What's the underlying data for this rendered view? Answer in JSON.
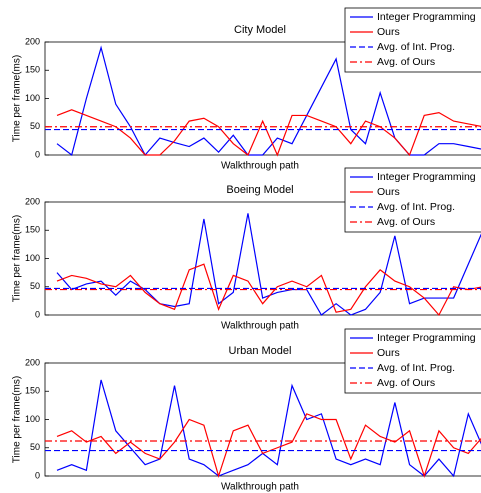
{
  "chart_data": [
    {
      "type": "line",
      "title": "City Model",
      "xlabel": "Walkthrough path",
      "ylabel": "Time per frame(ms)",
      "categories": [
        null,
        null,
        null,
        null,
        null,
        null,
        null,
        null,
        null,
        null,
        null,
        null,
        null,
        null,
        null,
        null,
        null,
        null,
        null,
        null,
        null,
        null,
        null,
        null,
        null,
        null,
        null,
        null,
        null,
        null
      ],
      "ylim": [
        0,
        200
      ],
      "yticks": [
        0,
        50,
        100,
        150,
        200
      ],
      "legend": "upper right",
      "series": [
        {
          "name": "Integer Programming",
          "color": "#0000ff",
          "style": "solid",
          "values": [
            20,
            0,
            100,
            190,
            90,
            50,
            0,
            30,
            22,
            15,
            30,
            5,
            35,
            0,
            0,
            30,
            20,
            70,
            120,
            170,
            45,
            20,
            110,
            30,
            0,
            0,
            20,
            20,
            15,
            10
          ]
        },
        {
          "name": "Ours",
          "color": "#ff0000",
          "style": "solid",
          "values": [
            70,
            80,
            70,
            60,
            50,
            30,
            0,
            0,
            25,
            60,
            65,
            50,
            20,
            0,
            60,
            0,
            70,
            70,
            60,
            50,
            20,
            60,
            50,
            30,
            0,
            70,
            75,
            60,
            55,
            50
          ]
        },
        {
          "name": "Avg. of Int. Prog.",
          "color": "#0000ff",
          "style": "dashed",
          "value": 45
        },
        {
          "name": "Avg. of Ours",
          "color": "#ff0000",
          "style": "dashdot",
          "value": 50
        }
      ]
    },
    {
      "type": "line",
      "title": "Boeing Model",
      "xlabel": "Walkthrough path",
      "ylabel": "Time per frame(ms)",
      "categories": [
        null,
        null,
        null,
        null,
        null,
        null,
        null,
        null,
        null,
        null,
        null,
        null,
        null,
        null,
        null,
        null,
        null,
        null,
        null,
        null,
        null,
        null,
        null,
        null,
        null,
        null,
        null,
        null,
        null,
        null
      ],
      "ylim": [
        0,
        200
      ],
      "yticks": [
        0,
        50,
        100,
        150,
        200
      ],
      "legend": "upper right",
      "series": [
        {
          "name": "Integer Programming",
          "color": "#0000ff",
          "style": "solid",
          "values": [
            75,
            45,
            55,
            60,
            35,
            60,
            45,
            20,
            15,
            20,
            170,
            20,
            40,
            180,
            30,
            40,
            45,
            45,
            0,
            20,
            0,
            10,
            40,
            140,
            20,
            30,
            30,
            30,
            90,
            150
          ]
        },
        {
          "name": "Ours",
          "color": "#ff0000",
          "style": "solid",
          "values": [
            60,
            70,
            65,
            55,
            50,
            70,
            40,
            20,
            10,
            80,
            90,
            10,
            70,
            60,
            20,
            50,
            60,
            50,
            70,
            5,
            10,
            50,
            80,
            60,
            50,
            30,
            0,
            50,
            45,
            50
          ]
        },
        {
          "name": "Avg. of Int. Prog.",
          "color": "#0000ff",
          "style": "dashed",
          "value": 47
        },
        {
          "name": "Avg. of Ours",
          "color": "#ff0000",
          "style": "dashdot",
          "value": 45
        }
      ]
    },
    {
      "type": "line",
      "title": "Urban Model",
      "xlabel": "Walkthrough path",
      "ylabel": "Time per frame(ms)",
      "categories": [
        null,
        null,
        null,
        null,
        null,
        null,
        null,
        null,
        null,
        null,
        null,
        null,
        null,
        null,
        null,
        null,
        null,
        null,
        null,
        null,
        null,
        null,
        null,
        null,
        null,
        null,
        null,
        null,
        null,
        null
      ],
      "ylim": [
        0,
        200
      ],
      "yticks": [
        0,
        50,
        100,
        150,
        200
      ],
      "legend": "upper right",
      "series": [
        {
          "name": "Integer Programming",
          "color": "#0000ff",
          "style": "solid",
          "values": [
            10,
            20,
            10,
            170,
            80,
            50,
            20,
            30,
            160,
            30,
            20,
            0,
            10,
            20,
            40,
            20,
            160,
            100,
            110,
            30,
            20,
            30,
            20,
            130,
            20,
            0,
            30,
            0,
            110,
            50
          ]
        },
        {
          "name": "Ours",
          "color": "#ff0000",
          "style": "solid",
          "values": [
            70,
            80,
            60,
            70,
            40,
            60,
            40,
            30,
            60,
            100,
            90,
            0,
            80,
            90,
            40,
            50,
            60,
            110,
            100,
            100,
            30,
            90,
            70,
            60,
            80,
            0,
            80,
            50,
            40,
            70
          ]
        },
        {
          "name": "Avg. of Int. Prog.",
          "color": "#0000ff",
          "style": "dashed",
          "value": 45
        },
        {
          "name": "Avg. of Ours",
          "color": "#ff0000",
          "style": "dashdot",
          "value": 62
        }
      ]
    }
  ]
}
